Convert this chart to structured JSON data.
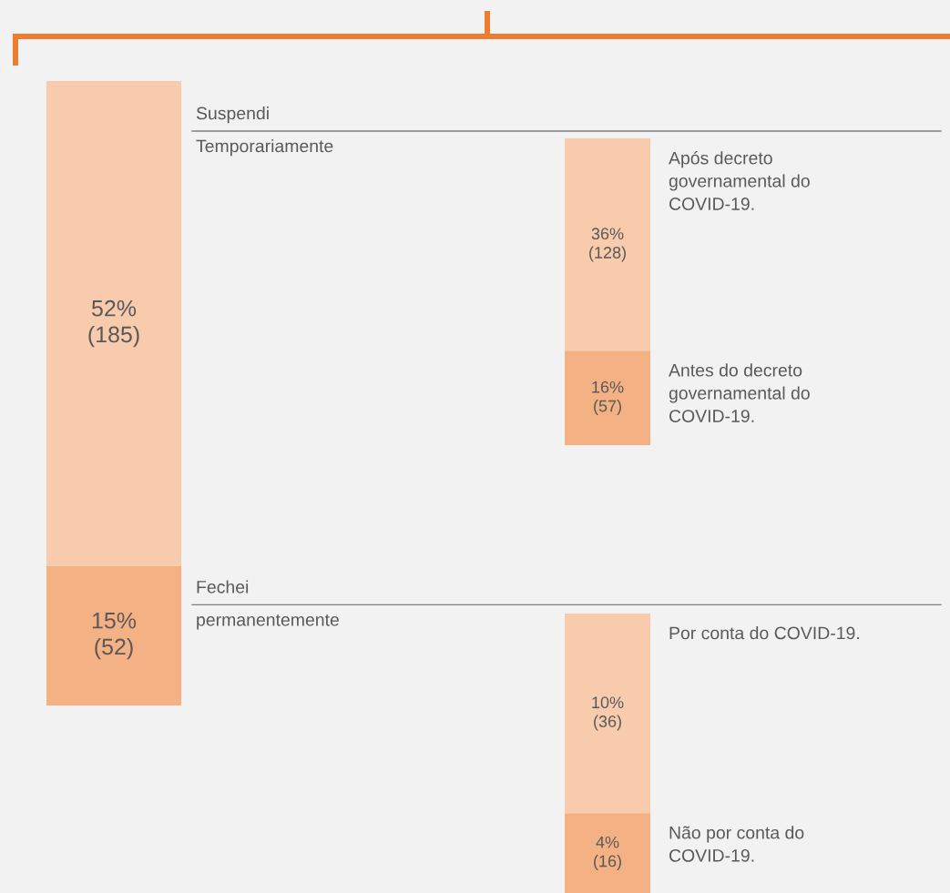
{
  "chart_data": [
    {
      "type": "bar",
      "stacked": true,
      "categories": [
        null
      ],
      "series": [
        {
          "name": "Fechei permanentemente",
          "color": "#f4b183",
          "values": [
            15
          ],
          "value_labels": [
            "15%\n(52)"
          ]
        },
        {
          "name": "Suspendi Temporariamente",
          "color": "#f8cbad",
          "values": [
            52
          ],
          "value_labels": [
            "52%\n(185)"
          ]
        }
      ]
    },
    {
      "type": "bar",
      "stacked": true,
      "categories": [
        null
      ],
      "series": [
        {
          "name": "Antes do decreto governamental do COVID-19.",
          "color": "#f4b183",
          "values": [
            16
          ],
          "value_labels": [
            "16%\n(57)"
          ]
        },
        {
          "name": "Após decreto governamental do COVID-19.",
          "color": "#f8cbad",
          "values": [
            36
          ],
          "value_labels": [
            "36%\n(128)"
          ]
        }
      ]
    },
    {
      "type": "bar",
      "stacked": true,
      "categories": [
        null
      ],
      "series": [
        {
          "name": "Não por conta do COVID-19.",
          "color": "#f4b183",
          "values": [
            4
          ],
          "value_labels": [
            "4%\n(16)"
          ]
        },
        {
          "name": "Por conta do COVID-19.",
          "color": "#f8cbad",
          "values": [
            10
          ],
          "value_labels": [
            "10%\n(36)"
          ]
        }
      ]
    }
  ]
}
